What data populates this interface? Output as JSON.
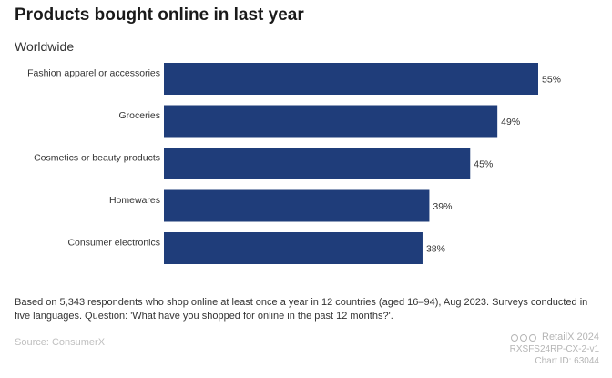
{
  "chart_data": {
    "type": "bar",
    "orientation": "horizontal",
    "title": "Products bought online in last year",
    "subtitle": "Worldwide",
    "categories": [
      "Fashion apparel or accessories",
      "Groceries",
      "Cosmetics or beauty products",
      "Homewares",
      "Consumer electronics"
    ],
    "values": [
      55,
      49,
      45,
      39,
      38
    ],
    "value_labels": [
      "55%",
      "49%",
      "45%",
      "39%",
      "38%"
    ],
    "xlim": [
      0,
      55
    ],
    "grid": false,
    "bar_color": "#1f3d7a"
  },
  "footnote": "Based on 5,343 respondents who shop online at least once a year in 12 countries (aged 16–94), Aug 2023. Surveys conducted in five languages. Question: 'What have you shopped for online in the past 12 months?'.",
  "source": "Source: ConsumerX",
  "brand": {
    "name": "RetailX 2024",
    "code": "RXSFS24RP-CX-2-v1",
    "chart_id": "Chart ID: 63044"
  }
}
